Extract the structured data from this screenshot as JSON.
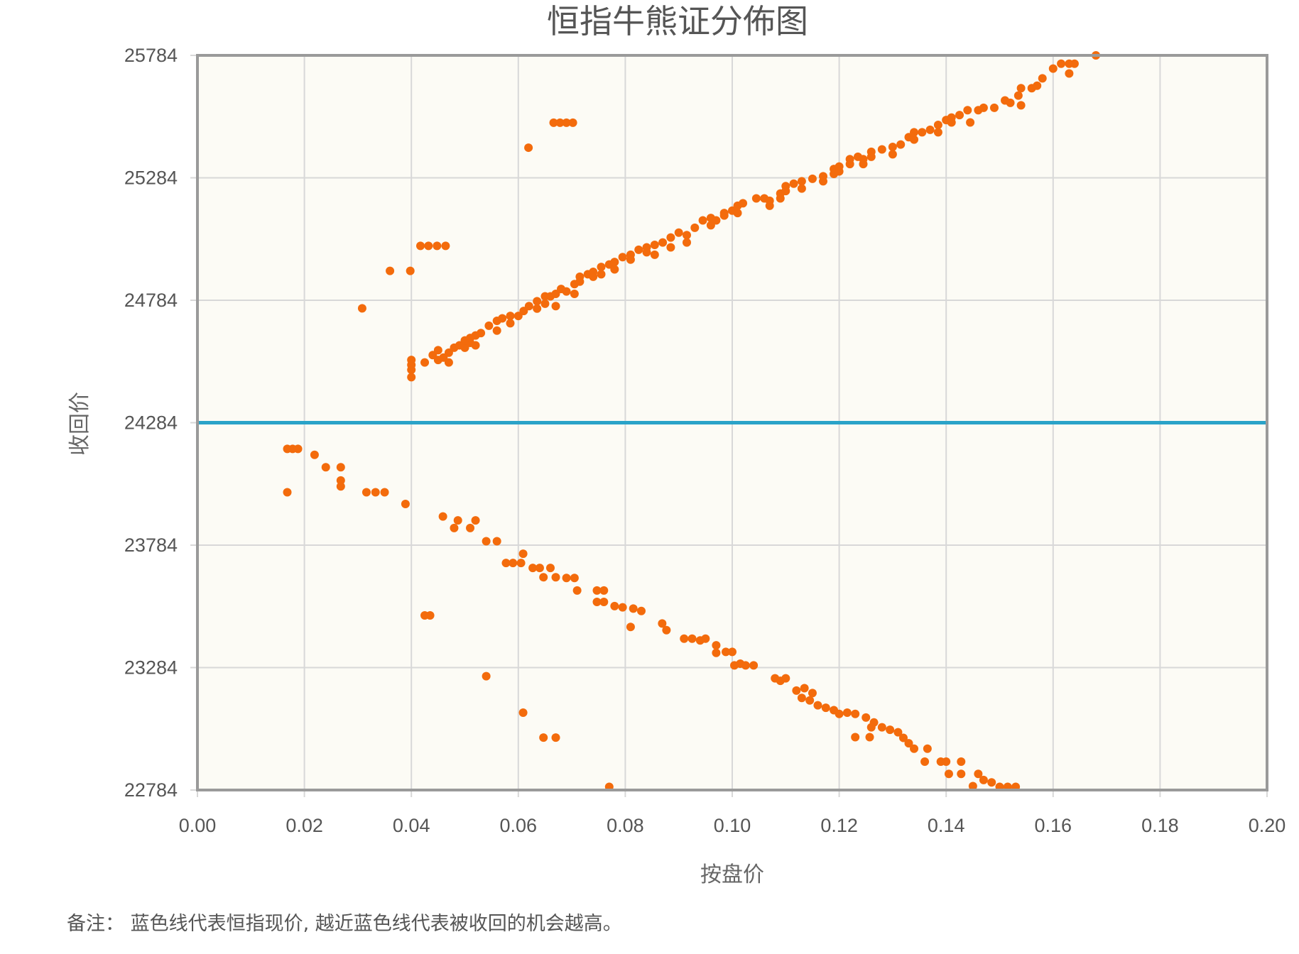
{
  "chart_data": {
    "type": "scatter",
    "title": "恒指牛熊证分佈图",
    "xlabel": "按盘价",
    "ylabel": "收回价",
    "xlim": [
      0,
      0.2
    ],
    "ylim": [
      22784,
      25784
    ],
    "xticks": [
      "0.00",
      "0.02",
      "0.04",
      "0.06",
      "0.08",
      "0.10",
      "0.12",
      "0.14",
      "0.16",
      "0.18",
      "0.20"
    ],
    "yticks": [
      "22784",
      "23284",
      "23784",
      "24284",
      "24784",
      "25284",
      "25784"
    ],
    "grid": true,
    "reference_line": {
      "y": 24284,
      "color": "#2aa3c8"
    },
    "point_color": "#f36b0c",
    "plot_background": "#fcfbf5",
    "footnote": "备注：  蓝色线代表恒指现价, 越近蓝色线代表被收回的机会越高。",
    "points": [
      [
        0.0308,
        24751
      ],
      [
        0.036,
        24904
      ],
      [
        0.0398,
        24904
      ],
      [
        0.0417,
        25006
      ],
      [
        0.0432,
        25006
      ],
      [
        0.0448,
        25006
      ],
      [
        0.0464,
        25006
      ],
      [
        0.0619,
        25407
      ],
      [
        0.0666,
        25509
      ],
      [
        0.0678,
        25509
      ],
      [
        0.069,
        25509
      ],
      [
        0.0702,
        25509
      ],
      [
        0.04,
        24470
      ],
      [
        0.04,
        24500
      ],
      [
        0.04,
        24520
      ],
      [
        0.04,
        24540
      ],
      [
        0.0425,
        24530
      ],
      [
        0.044,
        24560
      ],
      [
        0.045,
        24580
      ],
      [
        0.045,
        24540
      ],
      [
        0.046,
        24550
      ],
      [
        0.047,
        24570
      ],
      [
        0.047,
        24530
      ],
      [
        0.048,
        24590
      ],
      [
        0.049,
        24600
      ],
      [
        0.05,
        24590
      ],
      [
        0.05,
        24620
      ],
      [
        0.051,
        24610
      ],
      [
        0.051,
        24630
      ],
      [
        0.052,
        24640
      ],
      [
        0.052,
        24600
      ],
      [
        0.053,
        24650
      ],
      [
        0.0545,
        24680
      ],
      [
        0.056,
        24700
      ],
      [
        0.056,
        24660
      ],
      [
        0.057,
        24710
      ],
      [
        0.0585,
        24720
      ],
      [
        0.0585,
        24690
      ],
      [
        0.06,
        24720
      ],
      [
        0.061,
        24740
      ],
      [
        0.062,
        24760
      ],
      [
        0.0635,
        24780
      ],
      [
        0.0635,
        24750
      ],
      [
        0.065,
        24800
      ],
      [
        0.065,
        24770
      ],
      [
        0.066,
        24800
      ],
      [
        0.067,
        24810
      ],
      [
        0.067,
        24760
      ],
      [
        0.068,
        24830
      ],
      [
        0.069,
        24820
      ],
      [
        0.0705,
        24850
      ],
      [
        0.0705,
        24810
      ],
      [
        0.0715,
        24880
      ],
      [
        0.0715,
        24860
      ],
      [
        0.073,
        24890
      ],
      [
        0.074,
        24900
      ],
      [
        0.074,
        24880
      ],
      [
        0.0755,
        24920
      ],
      [
        0.0755,
        24890
      ],
      [
        0.077,
        24930
      ],
      [
        0.078,
        24940
      ],
      [
        0.078,
        24910
      ],
      [
        0.0795,
        24960
      ],
      [
        0.081,
        24970
      ],
      [
        0.081,
        24950
      ],
      [
        0.0825,
        24990
      ],
      [
        0.084,
        25000
      ],
      [
        0.084,
        24980
      ],
      [
        0.0855,
        25010
      ],
      [
        0.0855,
        24970
      ],
      [
        0.087,
        25020
      ],
      [
        0.0885,
        25040
      ],
      [
        0.0885,
        25000
      ],
      [
        0.09,
        25060
      ],
      [
        0.0915,
        25050
      ],
      [
        0.0915,
        25020
      ],
      [
        0.093,
        25080
      ],
      [
        0.0945,
        25110
      ],
      [
        0.096,
        25120
      ],
      [
        0.096,
        25090
      ],
      [
        0.097,
        25110
      ],
      [
        0.0985,
        25140
      ],
      [
        0.0985,
        25130
      ],
      [
        0.1,
        25150
      ],
      [
        0.101,
        25170
      ],
      [
        0.101,
        25140
      ],
      [
        0.102,
        25180
      ],
      [
        0.1045,
        25200
      ],
      [
        0.106,
        25200
      ],
      [
        0.107,
        25190
      ],
      [
        0.107,
        25170
      ],
      [
        0.109,
        25220
      ],
      [
        0.109,
        25200
      ],
      [
        0.11,
        25250
      ],
      [
        0.11,
        25230
      ],
      [
        0.1115,
        25260
      ],
      [
        0.113,
        25270
      ],
      [
        0.113,
        25240
      ],
      [
        0.115,
        25280
      ],
      [
        0.117,
        25290
      ],
      [
        0.117,
        25270
      ],
      [
        0.119,
        25320
      ],
      [
        0.119,
        25300
      ],
      [
        0.12,
        25310
      ],
      [
        0.12,
        25330
      ],
      [
        0.122,
        25360
      ],
      [
        0.122,
        25340
      ],
      [
        0.1235,
        25370
      ],
      [
        0.1245,
        25360
      ],
      [
        0.1245,
        25340
      ],
      [
        0.126,
        25390
      ],
      [
        0.126,
        25370
      ],
      [
        0.128,
        25400
      ],
      [
        0.13,
        25410
      ],
      [
        0.13,
        25380
      ],
      [
        0.1315,
        25420
      ],
      [
        0.133,
        25450
      ],
      [
        0.134,
        25440
      ],
      [
        0.134,
        25470
      ],
      [
        0.1355,
        25470
      ],
      [
        0.137,
        25480
      ],
      [
        0.1385,
        25500
      ],
      [
        0.1385,
        25470
      ],
      [
        0.14,
        25520
      ],
      [
        0.141,
        25530
      ],
      [
        0.141,
        25510
      ],
      [
        0.1425,
        25540
      ],
      [
        0.144,
        25560
      ],
      [
        0.1445,
        25510
      ],
      [
        0.146,
        25560
      ],
      [
        0.147,
        25570
      ],
      [
        0.149,
        25570
      ],
      [
        0.151,
        25600
      ],
      [
        0.152,
        25590
      ],
      [
        0.1535,
        25620
      ],
      [
        0.154,
        25650
      ],
      [
        0.154,
        25580
      ],
      [
        0.156,
        25650
      ],
      [
        0.157,
        25660
      ],
      [
        0.158,
        25690
      ],
      [
        0.16,
        25730
      ],
      [
        0.1615,
        25750
      ],
      [
        0.163,
        25750
      ],
      [
        0.163,
        25710
      ],
      [
        0.164,
        25750
      ],
      [
        0.168,
        25784
      ],
      [
        0.0168,
        24177
      ],
      [
        0.0178,
        24177
      ],
      [
        0.0188,
        24177
      ],
      [
        0.0168,
        24000
      ],
      [
        0.0219,
        24153
      ],
      [
        0.024,
        24102
      ],
      [
        0.0268,
        24102
      ],
      [
        0.0268,
        24048
      ],
      [
        0.0268,
        24024
      ],
      [
        0.0316,
        24000
      ],
      [
        0.0333,
        24000
      ],
      [
        0.035,
        24000
      ],
      [
        0.0389,
        23952
      ],
      [
        0.0425,
        23497
      ],
      [
        0.0435,
        23497
      ],
      [
        0.0459,
        23901
      ],
      [
        0.048,
        23854
      ],
      [
        0.0487,
        23885
      ],
      [
        0.051,
        23854
      ],
      [
        0.052,
        23885
      ],
      [
        0.054,
        23800
      ],
      [
        0.054,
        23249
      ],
      [
        0.056,
        23800
      ],
      [
        0.0577,
        23711
      ],
      [
        0.059,
        23711
      ],
      [
        0.0605,
        23711
      ],
      [
        0.0609,
        23749
      ],
      [
        0.0609,
        23100
      ],
      [
        0.0627,
        23691
      ],
      [
        0.064,
        23691
      ],
      [
        0.0647,
        23653
      ],
      [
        0.0647,
        22998
      ],
      [
        0.066,
        23691
      ],
      [
        0.067,
        23653
      ],
      [
        0.067,
        22998
      ],
      [
        0.069,
        23650
      ],
      [
        0.0705,
        23650
      ],
      [
        0.071,
        23599
      ],
      [
        0.0747,
        23599
      ],
      [
        0.076,
        23599
      ],
      [
        0.0747,
        23552
      ],
      [
        0.076,
        23552
      ],
      [
        0.077,
        22797
      ],
      [
        0.078,
        23535
      ],
      [
        0.0795,
        23530
      ],
      [
        0.081,
        23450
      ],
      [
        0.0815,
        23525
      ],
      [
        0.083,
        23515
      ],
      [
        0.0869,
        23464
      ],
      [
        0.0877,
        23437
      ],
      [
        0.091,
        23402
      ],
      [
        0.0925,
        23402
      ],
      [
        0.094,
        23395
      ],
      [
        0.095,
        23402
      ],
      [
        0.097,
        23375
      ],
      [
        0.097,
        23344
      ],
      [
        0.0988,
        23348
      ],
      [
        0.1,
        23348
      ],
      [
        0.1004,
        23293
      ],
      [
        0.1015,
        23300
      ],
      [
        0.1025,
        23293
      ],
      [
        0.104,
        23293
      ],
      [
        0.108,
        23240
      ],
      [
        0.109,
        23230
      ],
      [
        0.11,
        23240
      ],
      [
        0.112,
        23190
      ],
      [
        0.113,
        23160
      ],
      [
        0.1135,
        23200
      ],
      [
        0.1145,
        23150
      ],
      [
        0.115,
        23180
      ],
      [
        0.116,
        23130
      ],
      [
        0.1175,
        23120
      ],
      [
        0.119,
        23110
      ],
      [
        0.12,
        23095
      ],
      [
        0.1215,
        23100
      ],
      [
        0.123,
        23095
      ],
      [
        0.123,
        23000
      ],
      [
        0.125,
        23080
      ],
      [
        0.1265,
        23060
      ],
      [
        0.126,
        23040
      ],
      [
        0.1257,
        23000
      ],
      [
        0.128,
        23040
      ],
      [
        0.1295,
        23030
      ],
      [
        0.131,
        23020
      ],
      [
        0.132,
        22997
      ],
      [
        0.133,
        22975
      ],
      [
        0.134,
        22953
      ],
      [
        0.136,
        22900
      ],
      [
        0.1365,
        22953
      ],
      [
        0.139,
        22900
      ],
      [
        0.14,
        22900
      ],
      [
        0.1405,
        22850
      ],
      [
        0.1428,
        22850
      ],
      [
        0.1428,
        22900
      ],
      [
        0.145,
        22800
      ],
      [
        0.146,
        22850
      ],
      [
        0.147,
        22825
      ],
      [
        0.1485,
        22815
      ],
      [
        0.15,
        22797
      ],
      [
        0.1515,
        22797
      ],
      [
        0.153,
        22797
      ]
    ]
  }
}
